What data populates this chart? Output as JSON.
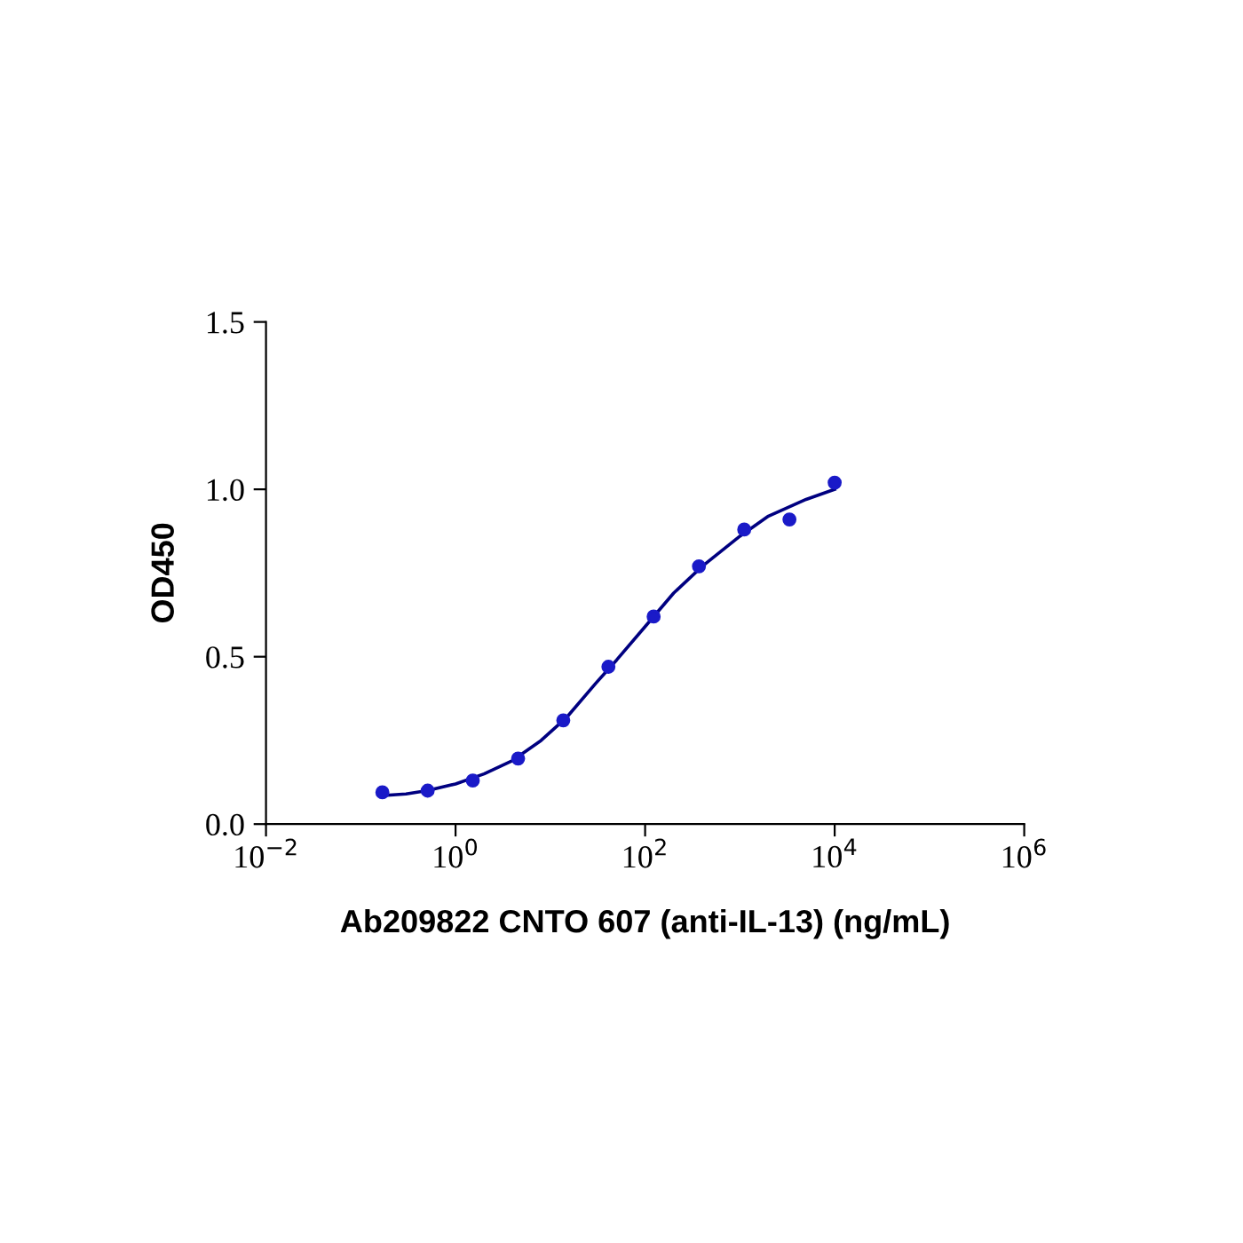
{
  "chart_data": {
    "type": "scatter",
    "xlabel": "Ab209822 CNTO 607 (anti-IL-13) (ng/mL)",
    "ylabel": "OD450",
    "log": "x",
    "grid": false,
    "xlim": [
      0.01,
      1000000
    ],
    "ylim": [
      0,
      1.5
    ],
    "xticks": [
      {
        "value": 0.01,
        "label": "10$^{−2}$"
      },
      {
        "value": 1,
        "label": "10$^{0}$"
      },
      {
        "value": 100,
        "label": "10$^{2}$"
      },
      {
        "value": 10000,
        "label": "10$^{4}$"
      },
      {
        "value": 1000000,
        "label": "10$^{6}$"
      }
    ],
    "yticks": [
      {
        "value": 0,
        "label": "0.0"
      },
      {
        "value": 0.5,
        "label": "0.5"
      },
      {
        "value": 1.0,
        "label": "1.0"
      },
      {
        "value": 1.5,
        "label": "1.5"
      }
    ],
    "series": [
      {
        "color": "#1a1ac8",
        "marker": "circle",
        "x": [
          0.169,
          0.508,
          1.52,
          4.57,
          13.7,
          41,
          123,
          370,
          1111,
          3333,
          10000
        ],
        "values": [
          0.095,
          0.1,
          0.13,
          0.196,
          0.31,
          0.47,
          0.62,
          0.77,
          0.88,
          0.91,
          1.02
        ]
      },
      {
        "type": "line",
        "color": "#000080",
        "marker": "none",
        "line_style": "solid",
        "x": [
          0.169,
          0.3,
          0.5,
          1,
          2,
          4,
          8,
          15,
          30,
          50,
          100,
          200,
          400,
          1000,
          2000,
          5000,
          10000
        ],
        "values": [
          0.085,
          0.09,
          0.1,
          0.12,
          0.15,
          0.19,
          0.25,
          0.32,
          0.42,
          0.49,
          0.59,
          0.69,
          0.77,
          0.86,
          0.92,
          0.97,
          1.0
        ]
      }
    ]
  }
}
